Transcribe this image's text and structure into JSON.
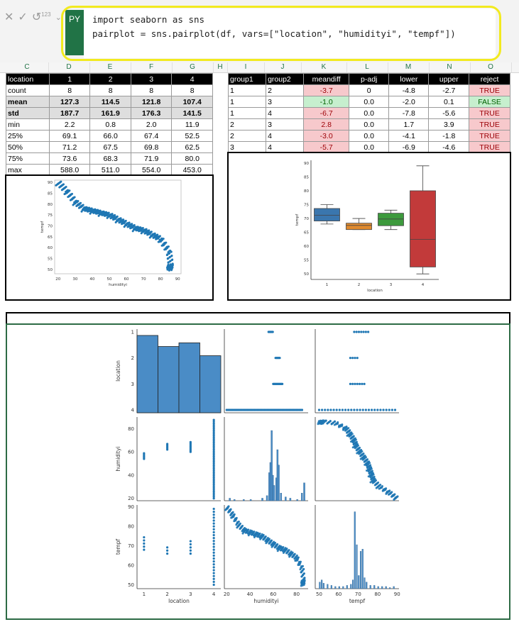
{
  "formula": {
    "badge": "PY",
    "line1": "import seaborn as sns",
    "line2": "pairplot = sns.pairplot(df, vars=[\"location\", \"humidityi\", \"tempf\"])",
    "icon_num": "123"
  },
  "columns": [
    "C",
    "D",
    "E",
    "F",
    "G",
    "H",
    "I",
    "J",
    "K",
    "L",
    "M",
    "N",
    "O"
  ],
  "describe": {
    "header": [
      "location",
      "1",
      "2",
      "3",
      "4"
    ],
    "rows": [
      {
        "label": "count",
        "values": [
          "8",
          "8",
          "8",
          "8"
        ],
        "bold": false
      },
      {
        "label": "mean",
        "values": [
          "127.3",
          "114.5",
          "121.8",
          "107.4"
        ],
        "bold": true
      },
      {
        "label": "std",
        "values": [
          "187.7",
          "161.9",
          "176.3",
          "141.5"
        ],
        "bold": true
      },
      {
        "label": "min",
        "values": [
          "2.2",
          "0.8",
          "2.0",
          "11.9"
        ],
        "bold": false
      },
      {
        "label": "25%",
        "values": [
          "69.1",
          "66.0",
          "67.4",
          "52.5"
        ],
        "bold": false
      },
      {
        "label": "50%",
        "values": [
          "71.2",
          "67.5",
          "69.8",
          "62.5"
        ],
        "bold": false
      },
      {
        "label": "75%",
        "values": [
          "73.6",
          "68.3",
          "71.9",
          "80.0"
        ],
        "bold": false
      },
      {
        "label": "max",
        "values": [
          "588.0",
          "511.0",
          "554.0",
          "453.0"
        ],
        "bold": false
      }
    ]
  },
  "tukey": {
    "header": [
      "group1",
      "group2",
      "meandiff",
      "p-adj",
      "lower",
      "upper",
      "reject"
    ],
    "rows": [
      [
        "1",
        "2",
        "-3.7",
        "0",
        "-4.8",
        "-2.7",
        "TRUE"
      ],
      [
        "1",
        "3",
        "-1.0",
        "0.0",
        "-2.0",
        "0.1",
        "FALSE"
      ],
      [
        "1",
        "4",
        "-6.7",
        "0.0",
        "-7.8",
        "-5.6",
        "TRUE"
      ],
      [
        "2",
        "3",
        "2.8",
        "0.0",
        "1.7",
        "3.9",
        "TRUE"
      ],
      [
        "2",
        "4",
        "-3.0",
        "0.0",
        "-4.1",
        "-1.8",
        "TRUE"
      ],
      [
        "3",
        "4",
        "-5.7",
        "0.0",
        "-6.9",
        "-4.6",
        "TRUE"
      ]
    ]
  },
  "chart_data": [
    {
      "type": "scatter",
      "xlabel": "humidityi",
      "ylabel": "tempf",
      "xlim": [
        18,
        92
      ],
      "ylim": [
        48,
        91
      ],
      "xticks": [
        20,
        30,
        40,
        50,
        60,
        70,
        80,
        90
      ],
      "yticks": [
        50,
        55,
        60,
        65,
        70,
        75,
        80,
        85,
        90
      ],
      "trend": [
        [
          20,
          90
        ],
        [
          25,
          86
        ],
        [
          30,
          81
        ],
        [
          35,
          78
        ],
        [
          40,
          77
        ],
        [
          45,
          76
        ],
        [
          50,
          75
        ],
        [
          55,
          73
        ],
        [
          60,
          71
        ],
        [
          65,
          69
        ],
        [
          70,
          68
        ],
        [
          75,
          66
        ],
        [
          80,
          64
        ],
        [
          85,
          58
        ],
        [
          86,
          52
        ],
        [
          85,
          50
        ]
      ]
    },
    {
      "type": "box",
      "xlabel": "location",
      "ylabel": "tempf",
      "categories": [
        "1",
        "2",
        "3",
        "4"
      ],
      "ylim": [
        48,
        91
      ],
      "yticks": [
        50,
        55,
        60,
        65,
        70,
        75,
        80,
        85,
        90
      ],
      "boxes": [
        {
          "q1": 69.1,
          "median": 71.2,
          "q3": 73.6,
          "min": 68,
          "max": 75,
          "color": "#3a76ae"
        },
        {
          "q1": 66.0,
          "median": 67.5,
          "q3": 68.3,
          "min": 66,
          "max": 70,
          "color": "#e08a2e"
        },
        {
          "q1": 67.4,
          "median": 69.8,
          "q3": 71.9,
          "min": 66,
          "max": 73,
          "color": "#3d9a3d"
        },
        {
          "q1": 52.5,
          "median": 62.5,
          "q3": 80.0,
          "min": 50,
          "max": 89,
          "color": "#c23a3a"
        }
      ]
    },
    {
      "type": "pairplot",
      "vars": [
        "location",
        "humidityi",
        "tempf"
      ],
      "location_ticks": [
        "1",
        "2",
        "3",
        "4"
      ],
      "humidity_ticks": [
        20,
        40,
        60,
        80
      ],
      "humidity_lim": [
        18,
        90
      ],
      "tempf_ticks": [
        50,
        60,
        70,
        80,
        90
      ],
      "tempf_lim": [
        48,
        91
      ],
      "location_hist": [
        0.42,
        0.36,
        0.38,
        0.31
      ]
    }
  ]
}
